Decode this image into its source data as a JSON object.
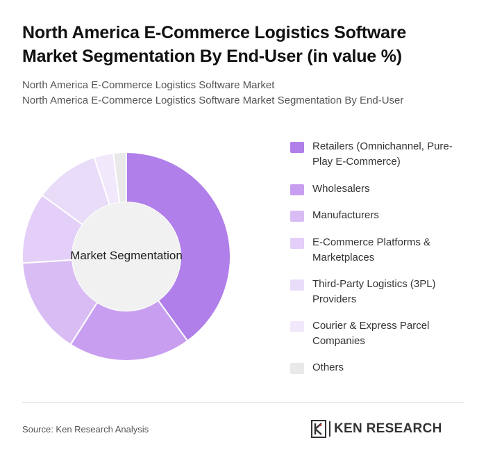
{
  "title": "North America E-Commerce Logistics Software Market Segmentation By End-User (in value %)",
  "subtitle_line1": "North America E-Commerce Logistics Software Market",
  "subtitle_line2": "North America E-Commerce Logistics Software Market Segmentation By End-User",
  "center_label": "Market Segmentation",
  "source": "Source: Ken Research Analysis",
  "brand": "KEN RESEARCH",
  "chart_data": {
    "type": "pie",
    "categories": [
      "Retailers (Omnichannel, Pure-Play E-Commerce)",
      "Wholesalers",
      "Manufacturers",
      "E-Commerce Platforms & Marketplaces",
      "Third-Party Logistics (3PL) Providers",
      "Courier & Express Parcel Companies",
      "Others"
    ],
    "values": [
      40,
      19,
      15,
      11,
      10,
      3,
      2
    ],
    "colors": [
      "#b07fe9",
      "#c89ff0",
      "#d9bcf4",
      "#e3cff7",
      "#e9dcf9",
      "#f1e9fb",
      "#e9e9e9"
    ],
    "hole_color": "#f1f1f1",
    "legend_position": "right"
  }
}
